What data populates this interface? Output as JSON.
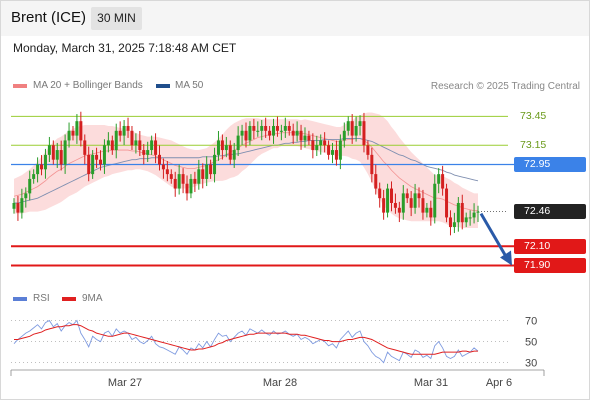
{
  "header": {
    "title": "Brent (ICE)",
    "timeframe": "30 MIN",
    "datetime": "Monday, March 31, 2025 7:18:48 AM CET"
  },
  "legend": {
    "ma_bb": {
      "label": "MA 20 + Bollinger Bands",
      "color": "#f08080"
    },
    "ma50": {
      "label": "MA 50",
      "color": "#1f4e8c"
    },
    "credit": "Research © 2025 Trading Central"
  },
  "rsi_legend": {
    "rsi": {
      "label": "RSI",
      "color": "#5b7fd6"
    },
    "ma9": {
      "label": "9MA",
      "color": "#e02020"
    }
  },
  "colors": {
    "up": "#2a9d2a",
    "down": "#d42020",
    "resistance": "#9acd32",
    "pivot": "#3b82e8",
    "support": "#e11818",
    "last": "#222222",
    "band": "#fbd0d0",
    "arrow": "#2a5aa8"
  },
  "chart_data": {
    "type": "candlestick",
    "x_tick_labels": [
      "Mar 27",
      "Mar 28",
      "Mar 31",
      "Apr 6"
    ],
    "ylim": [
      71.75,
      73.62
    ],
    "levels": [
      {
        "value": 73.45,
        "label": "73.45",
        "kind": "resistance"
      },
      {
        "value": 73.15,
        "label": "73.15",
        "kind": "resistance"
      },
      {
        "value": 72.95,
        "label": "72.95",
        "kind": "pivot"
      },
      {
        "value": 72.46,
        "label": "72.46",
        "kind": "last"
      },
      {
        "value": 72.1,
        "label": "72.10",
        "kind": "support"
      },
      {
        "value": 71.9,
        "label": "71.90",
        "kind": "support"
      }
    ],
    "forecast_target": 71.9,
    "close": [
      72.55,
      72.45,
      72.6,
      72.65,
      72.8,
      72.85,
      72.95,
      72.9,
      73.05,
      73.15,
      73.0,
      73.1,
      72.95,
      73.2,
      73.3,
      73.25,
      73.4,
      73.2,
      73.05,
      72.85,
      73.05,
      73.0,
      72.95,
      73.15,
      73.2,
      73.1,
      73.3,
      73.25,
      73.35,
      73.3,
      73.15,
      73.2,
      73.1,
      73.05,
      73.1,
      73.2,
      73.05,
      72.95,
      72.9,
      72.85,
      72.8,
      72.7,
      72.85,
      72.75,
      72.65,
      72.8,
      72.75,
      72.9,
      72.8,
      72.95,
      72.85,
      73.05,
      73.2,
      73.1,
      73.15,
      73.0,
      73.1,
      73.25,
      73.3,
      73.2,
      73.35,
      73.3,
      73.3,
      73.35,
      73.3,
      73.25,
      73.35,
      73.3,
      73.3,
      73.35,
      73.3,
      73.25,
      73.3,
      73.2,
      73.25,
      73.2,
      73.1,
      73.15,
      73.2,
      73.15,
      73.05,
      73.1,
      73.0,
      73.2,
      73.3,
      73.4,
      73.25,
      73.35,
      73.4,
      73.15,
      73.05,
      72.85,
      72.7,
      72.6,
      72.45,
      72.7,
      72.55,
      72.5,
      72.45,
      72.65,
      72.6,
      72.5,
      72.65,
      72.6,
      72.45,
      72.5,
      72.4,
      72.75,
      72.85,
      72.7,
      72.4,
      72.3,
      72.35,
      72.55,
      72.35,
      72.4,
      72.4,
      72.45,
      72.46
    ],
    "ma20": [
      72.62,
      72.63,
      72.64,
      72.66,
      72.68,
      72.7,
      72.72,
      72.75,
      72.78,
      72.82,
      72.85,
      72.88,
      72.9,
      72.93,
      72.96,
      72.98,
      73.0,
      73.02,
      73.04,
      73.05,
      73.06,
      73.07,
      73.08,
      73.09,
      73.09,
      73.1,
      73.1,
      73.1,
      73.1,
      73.1,
      73.09,
      73.09,
      73.08,
      73.07,
      73.06,
      73.05,
      73.04,
      73.02,
      73.0,
      72.98,
      72.96,
      72.94,
      72.93,
      72.92,
      72.91,
      72.91,
      72.91,
      72.92,
      72.93,
      72.94,
      72.96,
      72.98,
      73.0,
      73.02,
      73.05,
      73.08,
      73.1,
      73.12,
      73.15,
      73.17,
      73.19,
      73.21,
      73.23,
      73.24,
      73.25,
      73.26,
      73.27,
      73.27,
      73.28,
      73.28,
      73.28,
      73.28,
      73.28,
      73.27,
      73.27,
      73.26,
      73.25,
      73.24,
      73.23,
      73.22,
      73.21,
      73.2,
      73.19,
      73.19,
      73.2,
      73.21,
      73.21,
      73.22,
      73.22,
      73.2,
      73.17,
      73.13,
      73.08,
      73.03,
      72.98,
      72.94,
      72.89,
      72.85,
      72.81,
      72.78,
      72.75,
      72.72,
      72.7,
      72.68,
      72.66,
      72.64,
      72.62,
      72.6,
      72.6,
      72.59,
      72.57,
      72.55,
      72.53,
      72.52,
      72.5,
      72.49,
      72.48,
      72.47,
      72.47
    ],
    "bb_width": [
      0.18,
      0.19,
      0.2,
      0.21,
      0.22,
      0.24,
      0.26,
      0.28,
      0.3,
      0.32,
      0.33,
      0.34,
      0.34,
      0.34,
      0.34,
      0.34,
      0.34,
      0.33,
      0.32,
      0.31,
      0.3,
      0.29,
      0.28,
      0.27,
      0.26,
      0.25,
      0.24,
      0.23,
      0.22,
      0.21,
      0.2,
      0.19,
      0.18,
      0.18,
      0.18,
      0.19,
      0.2,
      0.21,
      0.22,
      0.23,
      0.24,
      0.24,
      0.23,
      0.22,
      0.21,
      0.2,
      0.19,
      0.18,
      0.18,
      0.18,
      0.19,
      0.2,
      0.22,
      0.24,
      0.26,
      0.27,
      0.28,
      0.28,
      0.27,
      0.26,
      0.24,
      0.22,
      0.2,
      0.18,
      0.17,
      0.16,
      0.15,
      0.15,
      0.14,
      0.14,
      0.14,
      0.14,
      0.14,
      0.14,
      0.15,
      0.15,
      0.15,
      0.15,
      0.15,
      0.15,
      0.15,
      0.15,
      0.15,
      0.15,
      0.16,
      0.18,
      0.2,
      0.22,
      0.24,
      0.28,
      0.32,
      0.36,
      0.4,
      0.44,
      0.46,
      0.46,
      0.45,
      0.44,
      0.42,
      0.4,
      0.38,
      0.36,
      0.34,
      0.32,
      0.3,
      0.28,
      0.26,
      0.24,
      0.24,
      0.24,
      0.24,
      0.24,
      0.23,
      0.22,
      0.21,
      0.2,
      0.19,
      0.18,
      0.18
    ],
    "ma50": [
      72.55,
      72.55,
      72.56,
      72.57,
      72.58,
      72.59,
      72.6,
      72.62,
      72.64,
      72.66,
      72.68,
      72.7,
      72.72,
      72.74,
      72.76,
      72.78,
      72.8,
      72.82,
      72.84,
      72.86,
      72.88,
      72.9,
      72.92,
      72.93,
      72.94,
      72.95,
      72.96,
      72.97,
      72.98,
      72.99,
      73.0,
      73.0,
      73.01,
      73.01,
      73.01,
      73.02,
      73.02,
      73.02,
      73.02,
      73.02,
      73.02,
      73.02,
      73.02,
      73.02,
      73.02,
      73.02,
      73.02,
      73.02,
      73.03,
      73.03,
      73.03,
      73.03,
      73.04,
      73.04,
      73.05,
      73.05,
      73.06,
      73.06,
      73.07,
      73.08,
      73.09,
      73.1,
      73.11,
      73.12,
      73.13,
      73.14,
      73.15,
      73.15,
      73.16,
      73.17,
      73.17,
      73.18,
      73.18,
      73.19,
      73.19,
      73.2,
      73.2,
      73.2,
      73.2,
      73.21,
      73.21,
      73.21,
      73.21,
      73.21,
      73.22,
      73.22,
      73.22,
      73.22,
      73.22,
      73.21,
      73.2,
      73.19,
      73.17,
      73.15,
      73.13,
      73.11,
      73.09,
      73.07,
      73.05,
      73.04,
      73.02,
      73.0,
      72.99,
      72.97,
      72.95,
      72.93,
      72.92,
      72.91,
      72.9,
      72.89,
      72.87,
      72.86,
      72.84,
      72.83,
      72.82,
      72.81,
      72.8,
      72.79,
      72.78
    ],
    "rsi": {
      "ticks": [
        70,
        50,
        30
      ],
      "ylim": [
        25,
        78
      ],
      "rsi_values": [
        48,
        52,
        55,
        58,
        60,
        63,
        66,
        62,
        68,
        70,
        64,
        67,
        60,
        65,
        68,
        66,
        70,
        58,
        52,
        45,
        55,
        52,
        50,
        58,
        60,
        55,
        62,
        58,
        60,
        58,
        52,
        54,
        50,
        48,
        51,
        55,
        48,
        45,
        44,
        42,
        40,
        38,
        45,
        42,
        38,
        44,
        42,
        48,
        44,
        50,
        45,
        52,
        58,
        55,
        56,
        50,
        54,
        58,
        60,
        56,
        62,
        60,
        58,
        61,
        58,
        56,
        60,
        57,
        58,
        60,
        57,
        55,
        57,
        52,
        54,
        52,
        48,
        50,
        52,
        50,
        46,
        48,
        44,
        52,
        56,
        60,
        54,
        58,
        60,
        50,
        46,
        40,
        36,
        34,
        30,
        40,
        36,
        34,
        32,
        40,
        38,
        35,
        42,
        40,
        35,
        37,
        34,
        46,
        50,
        44,
        36,
        34,
        36,
        42,
        36,
        38,
        40,
        44,
        41
      ],
      "ma9_values": [
        52,
        52,
        53,
        54,
        55,
        57,
        58,
        59,
        61,
        62,
        63,
        64,
        64,
        65,
        65,
        66,
        66,
        65,
        63,
        61,
        60,
        58,
        57,
        56,
        55,
        55,
        56,
        57,
        58,
        58,
        57,
        56,
        55,
        54,
        53,
        52,
        51,
        50,
        49,
        48,
        47,
        46,
        45,
        44,
        43,
        42,
        42,
        43,
        43,
        44,
        45,
        46,
        48,
        49,
        51,
        52,
        53,
        54,
        55,
        56,
        57,
        57,
        58,
        58,
        58,
        58,
        58,
        58,
        58,
        58,
        57,
        57,
        57,
        56,
        56,
        55,
        54,
        53,
        52,
        51,
        51,
        50,
        50,
        50,
        51,
        52,
        52,
        53,
        54,
        54,
        53,
        52,
        50,
        48,
        46,
        44,
        43,
        42,
        41,
        40,
        39,
        38,
        38,
        38,
        38,
        38,
        38,
        38,
        39,
        40,
        40,
        40,
        40,
        40,
        41,
        41,
        40,
        41,
        41
      ]
    }
  }
}
